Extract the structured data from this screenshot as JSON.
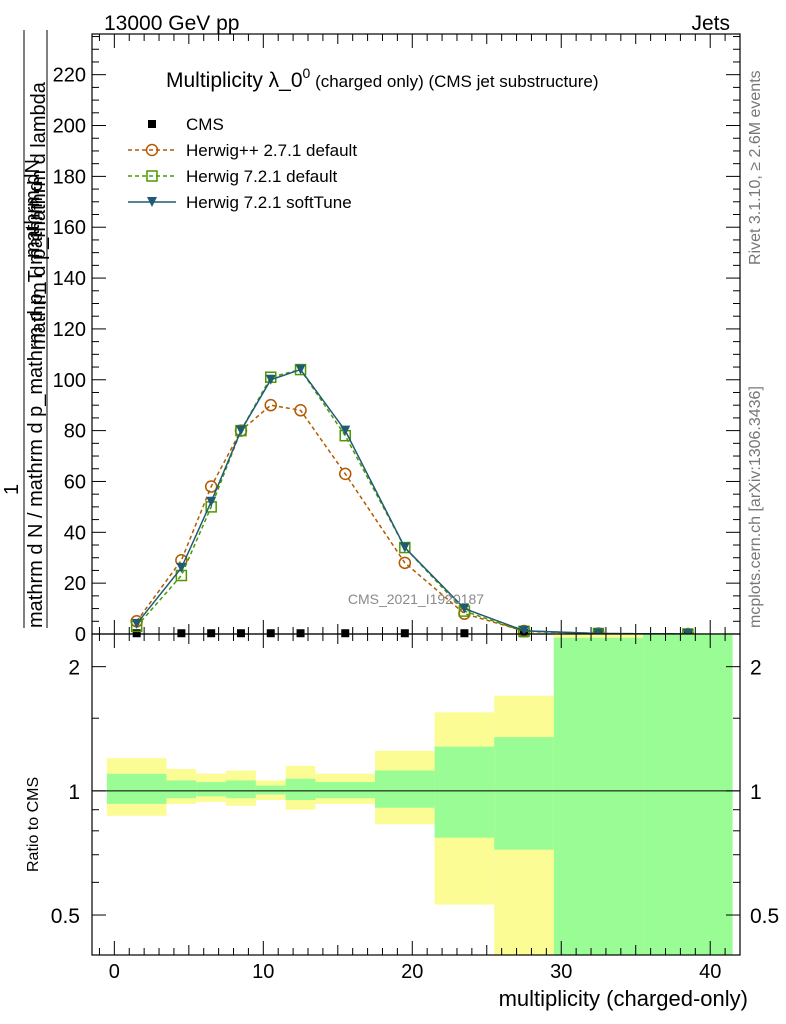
{
  "header": {
    "left": "13000 GeV pp",
    "right": "Jets",
    "side_top": "Rivet 3.1.10, ≥ 2.6M events",
    "side_bottom": "mcplots.cern.ch [arXiv:1306.3436]",
    "watermark": "CMS_2021_I1920187"
  },
  "title_main": "Multiplicity λ_0",
  "title_sup": "0",
  "title_sub": " (charged only) (CMS jet substructure)",
  "ylabel_num": "mathrm dN",
  "ylabel_den": "mathrm d p_mathrm d lambda",
  "ylabel_lhs_num": "1",
  "ylabel_lhs_den": "mathrm d N / mathrm d p_mathrm d p_T mathrm d",
  "ratio_ylabel": "Ratio to CMS",
  "chart_data": [
    {
      "type": "line",
      "xlabel": "multiplicity (charged-only)",
      "xlim": [
        -1.5,
        42
      ],
      "ylim": [
        0,
        236
      ],
      "x_ticks": [
        0,
        10,
        20,
        30,
        40
      ],
      "y_ticks": [
        0,
        20,
        40,
        60,
        80,
        100,
        120,
        140,
        160,
        180,
        200,
        220
      ],
      "legend_position": "top-left",
      "series": [
        {
          "name": "CMS",
          "marker": "square-filled",
          "color": "#000000",
          "x": [
            1.5,
            4.5,
            6.5,
            8.5,
            10.5,
            12.5,
            15.5,
            19.5,
            23.5,
            27.5,
            32.5,
            38.5
          ],
          "values": [
            0.3,
            0.3,
            0.3,
            0.3,
            0.3,
            0.3,
            0.3,
            0.3,
            0.3,
            0.3,
            0.1,
            0.0
          ]
        },
        {
          "name": "Herwig++ 2.7.1 default",
          "marker": "circle-open",
          "color": "#b35900",
          "x": [
            1.5,
            4.5,
            6.5,
            8.5,
            10.5,
            12.5,
            15.5,
            19.5,
            23.5,
            27.5,
            32.5,
            38.5
          ],
          "values": [
            5,
            29,
            58,
            80,
            90,
            88,
            63,
            28,
            8,
            1.2,
            0.2,
            0.0
          ]
        },
        {
          "name": "Herwig 7.2.1 default",
          "marker": "square-open",
          "color": "#4d9900",
          "x": [
            1.5,
            4.5,
            6.5,
            8.5,
            10.5,
            12.5,
            15.5,
            19.5,
            23.5,
            27.5,
            32.5,
            38.5
          ],
          "values": [
            3,
            23,
            50,
            80,
            101,
            104,
            78,
            34,
            9,
            1.0,
            0.2,
            0.0
          ]
        },
        {
          "name": "Herwig 7.2.1 softTune",
          "marker": "triangle-down-filled",
          "color": "#1f5c73",
          "x": [
            1.5,
            4.5,
            6.5,
            8.5,
            10.5,
            12.5,
            15.5,
            19.5,
            23.5,
            27.5,
            32.5,
            38.5
          ],
          "values": [
            4,
            26,
            52,
            80,
            100,
            104,
            80,
            34,
            10,
            1.3,
            0.2,
            0.0
          ]
        }
      ]
    },
    {
      "type": "area",
      "ylabel": "Ratio to CMS",
      "scale": "log",
      "ylim": [
        0.4,
        2.4
      ],
      "y_ticks": [
        0.5,
        1,
        2
      ],
      "reference_line": 1,
      "bands": [
        {
          "x0": -0.5,
          "x1": 3.5,
          "green": [
            0.93,
            1.1
          ],
          "yellow": [
            0.87,
            1.2
          ]
        },
        {
          "x0": 3.5,
          "x1": 5.5,
          "green": [
            0.96,
            1.06
          ],
          "yellow": [
            0.93,
            1.13
          ]
        },
        {
          "x0": 5.5,
          "x1": 7.5,
          "green": [
            0.97,
            1.05
          ],
          "yellow": [
            0.94,
            1.1
          ]
        },
        {
          "x0": 7.5,
          "x1": 9.5,
          "green": [
            0.96,
            1.06
          ],
          "yellow": [
            0.92,
            1.12
          ]
        },
        {
          "x0": 9.5,
          "x1": 11.5,
          "green": [
            0.98,
            1.03
          ],
          "yellow": [
            0.95,
            1.06
          ]
        },
        {
          "x0": 11.5,
          "x1": 13.5,
          "green": [
            0.95,
            1.07
          ],
          "yellow": [
            0.9,
            1.15
          ]
        },
        {
          "x0": 13.5,
          "x1": 17.5,
          "green": [
            0.96,
            1.05
          ],
          "yellow": [
            0.93,
            1.1
          ]
        },
        {
          "x0": 17.5,
          "x1": 21.5,
          "green": [
            0.91,
            1.12
          ],
          "yellow": [
            0.83,
            1.25
          ]
        },
        {
          "x0": 21.5,
          "x1": 25.5,
          "green": [
            0.77,
            1.28
          ],
          "yellow": [
            0.53,
            1.55
          ]
        },
        {
          "x0": 25.5,
          "x1": 29.5,
          "green": [
            0.72,
            1.35
          ],
          "yellow": [
            0.35,
            1.7
          ]
        },
        {
          "x0": 29.5,
          "x1": 35.5,
          "green": [
            0.35,
            2.35
          ],
          "yellow": [
            0.35,
            2.4
          ]
        },
        {
          "x0": 35.5,
          "x1": 41.5,
          "green": [
            0.35,
            2.4
          ],
          "yellow": [
            0.35,
            2.4
          ]
        }
      ]
    }
  ],
  "colors": {
    "green_band": "#9afc94",
    "yellow_band": "#fcfc94"
  }
}
